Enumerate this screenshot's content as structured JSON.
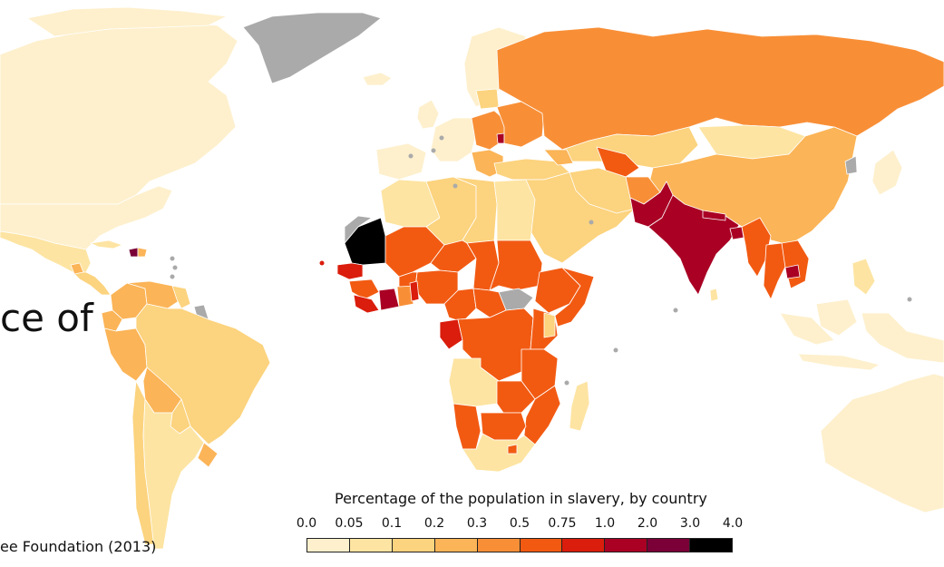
{
  "map": {
    "title_fragment": "ce of",
    "source_fragment": "ee Foundation (2013)",
    "legend": {
      "title": "Percentage of the population in slavery, by country",
      "labels": [
        "0.0",
        "0.05",
        "0.1",
        "0.2",
        "0.3",
        "0.5",
        "0.75",
        "1.0",
        "2.0",
        "3.0",
        "4.0"
      ],
      "colors": [
        "#fef0cd",
        "#fde4a2",
        "#fcd37e",
        "#fbb457",
        "#f88f37",
        "#f25a12",
        "#da1d0c",
        "#a90024",
        "#7a0037",
        "#000000"
      ]
    },
    "colors": {
      "no_data": "#aaaaaa",
      "ocean": "#ffffff",
      "border": "#ffffff"
    }
  }
}
